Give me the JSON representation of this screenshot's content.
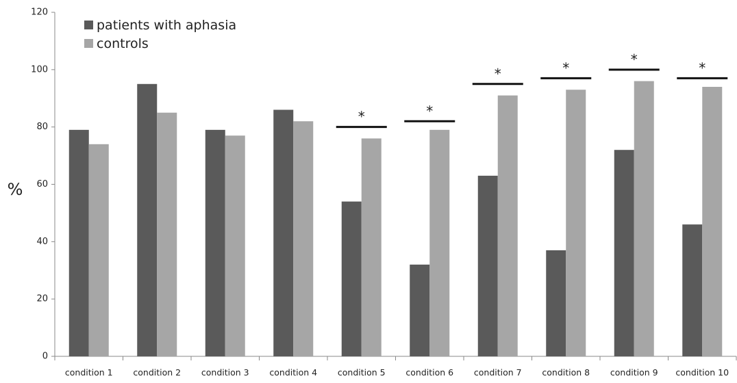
{
  "chart_data": {
    "type": "bar",
    "title": "",
    "xlabel": "",
    "ylabel": "%",
    "ylim": [
      0,
      120
    ],
    "yticks": [
      0,
      20,
      40,
      60,
      80,
      100,
      120
    ],
    "categories": [
      "condition 1",
      "condition 2",
      "condition 3",
      "condition 4",
      "condition 5",
      "condition 6",
      "condition 7",
      "condition 8",
      "condition 9",
      "condition 10"
    ],
    "series": [
      {
        "name": "patients with aphasia",
        "color": "#5a5a5a",
        "values": [
          79,
          95,
          79,
          86,
          54,
          32,
          63,
          37,
          72,
          46
        ]
      },
      {
        "name": "controls",
        "color": "#a6a6a6",
        "values": [
          74,
          85,
          77,
          82,
          76,
          79,
          91,
          93,
          96,
          94
        ]
      }
    ],
    "significance": [
      {
        "category": "condition 5",
        "y": 80,
        "marker": "*"
      },
      {
        "category": "condition 6",
        "y": 82,
        "marker": "*"
      },
      {
        "category": "condition 7",
        "y": 95,
        "marker": "*"
      },
      {
        "category": "condition 8",
        "y": 97,
        "marker": "*"
      },
      {
        "category": "condition 9",
        "y": 100,
        "marker": "*"
      },
      {
        "category": "condition 10",
        "y": 97,
        "marker": "*"
      }
    ],
    "legend_position": "top-left",
    "grid": false
  }
}
